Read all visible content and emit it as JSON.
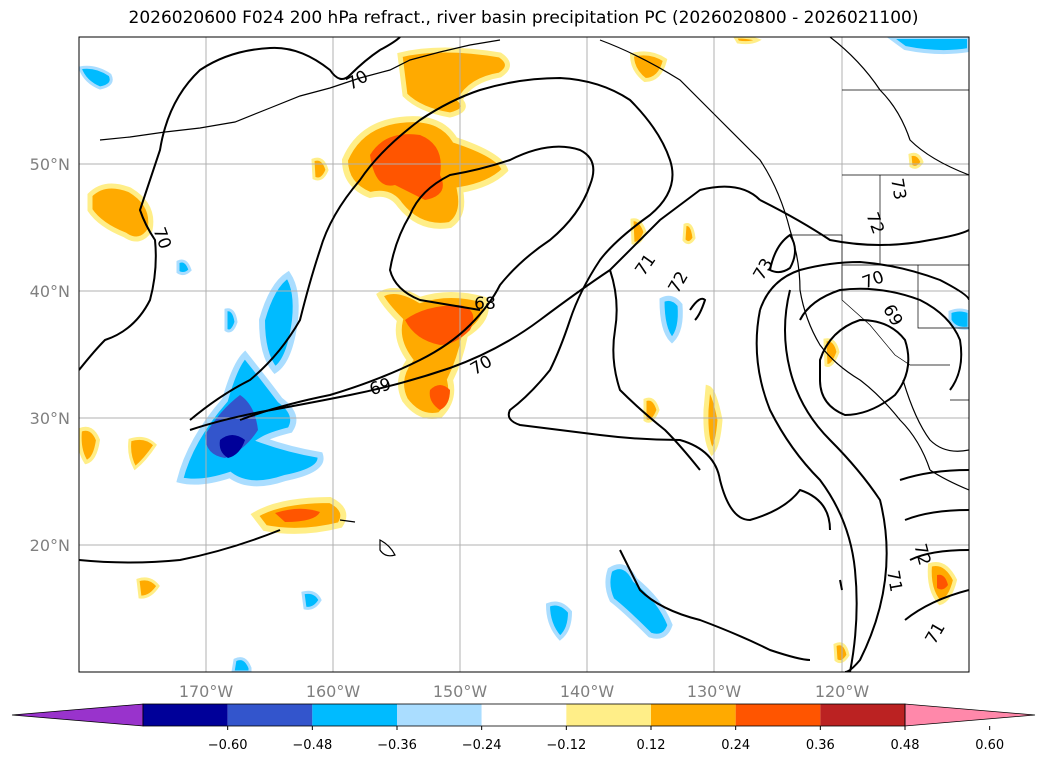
{
  "chart_data": {
    "type": "contour-map",
    "title": "2026020600 F024 200 hPa refract., river basin precipitation PC (2026020800 - 2026021100)",
    "projection": "PlateCarree",
    "xlim": [
      -180,
      -110
    ],
    "ylim": [
      10,
      60
    ],
    "lat_ticks": [
      "20°N",
      "30°N",
      "40°N",
      "50°N"
    ],
    "lon_ticks": [
      "170°W",
      "160°W",
      "150°W",
      "140°W",
      "130°W",
      "120°W"
    ],
    "grid": true,
    "contour_levels_labeled": [
      "68",
      "69",
      "70",
      "71",
      "72",
      "73"
    ],
    "colorbar": {
      "orientation": "horizontal",
      "extend": "both",
      "tick_labels": [
        "−0.60",
        "−0.48",
        "−0.36",
        "−0.24",
        "−0.12",
        "0.12",
        "0.24",
        "0.36",
        "0.48",
        "0.60"
      ],
      "colors": [
        "#9933cc",
        "#000099",
        "#3355cc",
        "#00bbff",
        "#aaddff",
        "#ffffff",
        "#ffee88",
        "#ffaa00",
        "#ff5500",
        "#bb2222",
        "#ff88aa"
      ]
    }
  }
}
